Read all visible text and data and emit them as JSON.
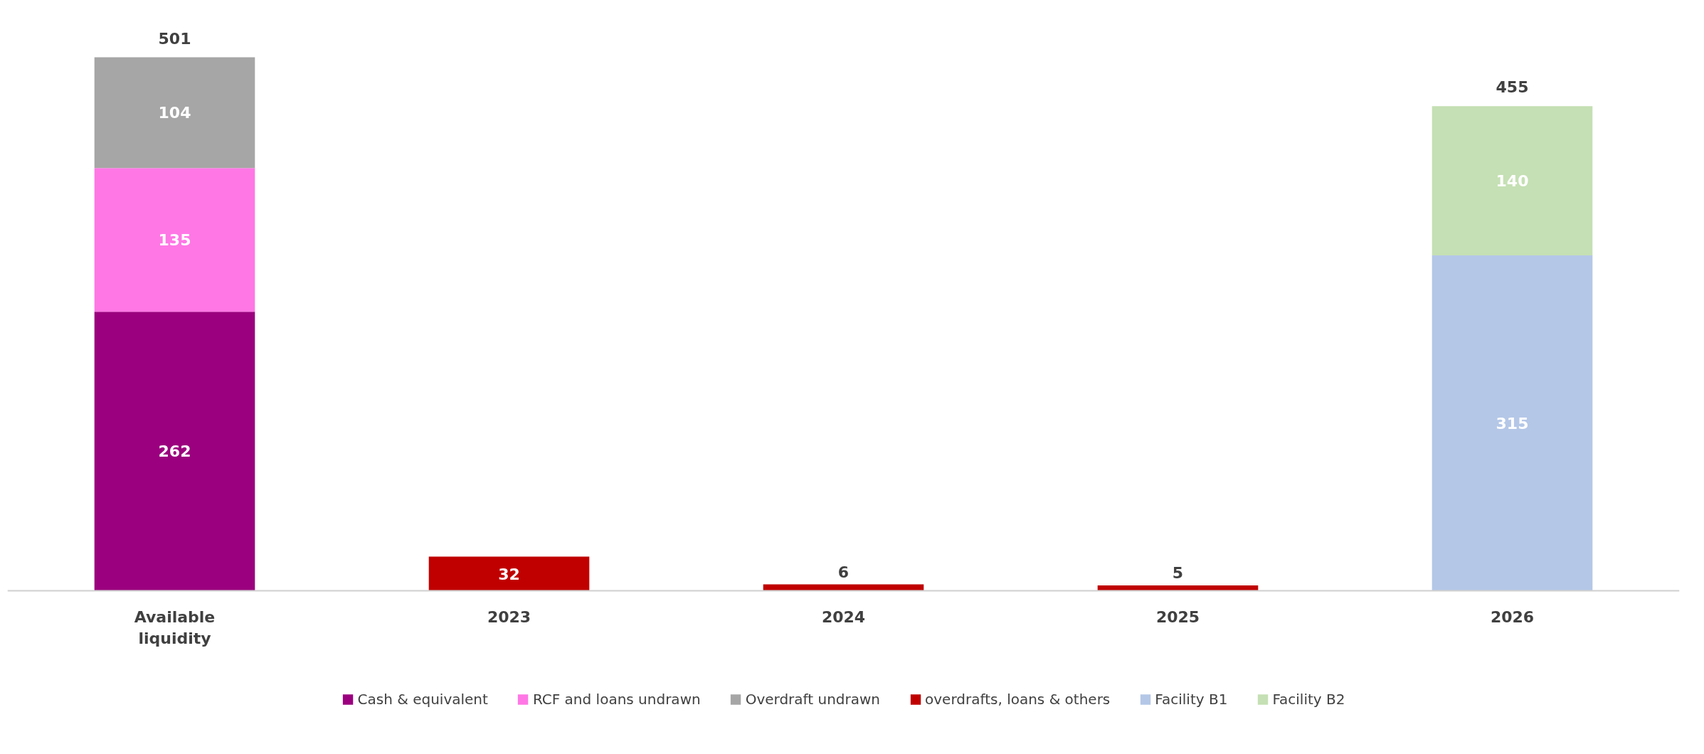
{
  "chart_data": {
    "type": "bar",
    "stacked": true,
    "data_labels": true,
    "legend": "bottom",
    "grid": false,
    "categories": [
      "Available liquidity",
      "2023",
      "2024",
      "2025",
      "2026"
    ],
    "series": [
      {
        "name": "Cash & equivalent",
        "color": "#9b007e",
        "values": [
          262,
          null,
          null,
          null,
          null
        ]
      },
      {
        "name": "RCF and loans undrawn",
        "color": "#ff77e5",
        "values": [
          135,
          null,
          null,
          null,
          null
        ]
      },
      {
        "name": "Overdraft undrawn",
        "color": "#a6a6a6",
        "values": [
          104,
          null,
          null,
          null,
          null
        ]
      },
      {
        "name": "overdrafts, loans & others",
        "color": "#c00000",
        "values": [
          null,
          32,
          6,
          5,
          null
        ]
      },
      {
        "name": "Facility B1",
        "color": "#b4c7e7",
        "values": [
          null,
          null,
          null,
          null,
          315
        ]
      },
      {
        "name": "Facility B2",
        "color": "#c5e0b4",
        "values": [
          null,
          null,
          null,
          null,
          140
        ]
      }
    ],
    "totals": [
      "501",
      null,
      null,
      null,
      "455"
    ]
  }
}
